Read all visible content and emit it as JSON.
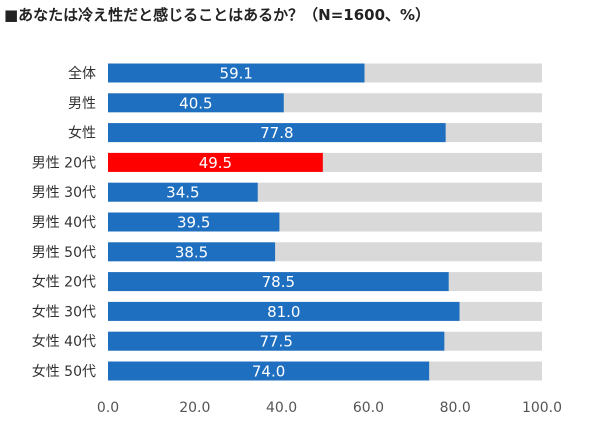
{
  "title": "■あなたは冷え性だと感じることはあるか？（N=1600、%）",
  "colors": {
    "bar": "#1f6fc0",
    "highlight": "#ff0000",
    "track": "#d9d9d9"
  },
  "chart_data": {
    "type": "bar",
    "orientation": "horizontal",
    "categories": [
      "全体",
      "男性",
      "女性",
      "男性 20代",
      "男性 30代",
      "男性 40代",
      "男性 50代",
      "女性 20代",
      "女性 30代",
      "女性 40代",
      "女性 50代"
    ],
    "values": [
      59.1,
      40.5,
      77.8,
      49.5,
      34.5,
      39.5,
      38.5,
      78.5,
      81.0,
      77.5,
      74.0
    ],
    "value_labels": [
      "59.1",
      "40.5",
      "77.8",
      "49.5",
      "34.5",
      "39.5",
      "38.5",
      "78.5",
      "81.0",
      "77.5",
      "74.0"
    ],
    "highlight_index": 3,
    "xlim": [
      0,
      100
    ],
    "xticks": [
      "0.0",
      "20.0",
      "40.0",
      "60.0",
      "80.0",
      "100.0"
    ],
    "grid": false,
    "legend": "none"
  }
}
